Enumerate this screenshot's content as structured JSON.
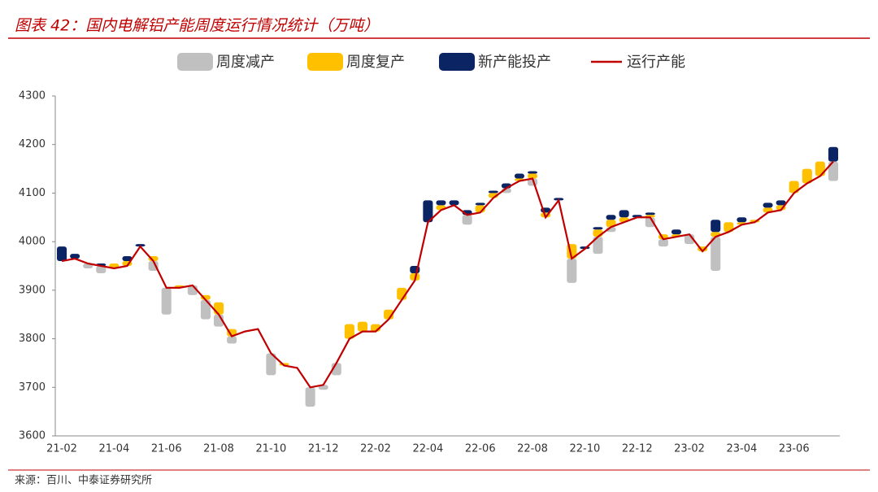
{
  "chart_data": {
    "type": "bar",
    "title": "图表 42：国内电解铝产能周度运行情况统计（万吨）",
    "source": "来源：百川、中泰证券研究所",
    "categories": [
      "21-02",
      null,
      null,
      null,
      "21-04",
      null,
      null,
      null,
      "21-06",
      null,
      null,
      null,
      "21-08",
      null,
      null,
      null,
      "21-10",
      null,
      null,
      null,
      "21-12",
      null,
      null,
      null,
      "22-02",
      null,
      null,
      null,
      "22-04",
      null,
      null,
      null,
      "22-06",
      null,
      null,
      null,
      "22-08",
      null,
      null,
      null,
      "22-10",
      null,
      null,
      null,
      "22-12",
      null,
      null,
      null,
      "23-02",
      null,
      null,
      null,
      "23-04",
      null,
      null,
      null,
      "23-06",
      null,
      null,
      null
    ],
    "ylim": [
      3600,
      4300
    ],
    "yticks": [
      3600,
      3700,
      3800,
      3900,
      4000,
      4100,
      4200,
      4300
    ],
    "series": [
      {
        "name": "周度减产",
        "color": "#c0c0c0",
        "type": "bar",
        "values": [
          0,
          0,
          10,
          15,
          0,
          0,
          0,
          20,
          55,
          0,
          20,
          40,
          25,
          15,
          0,
          0,
          45,
          0,
          0,
          40,
          10,
          25,
          0,
          0,
          0,
          0,
          0,
          0,
          0,
          0,
          0,
          20,
          0,
          0,
          10,
          0,
          15,
          0,
          0,
          50,
          0,
          35,
          10,
          0,
          0,
          20,
          15,
          0,
          20,
          0,
          70,
          0,
          0,
          0,
          0,
          0,
          0,
          0,
          0,
          40
        ]
      },
      {
        "name": "周度复产",
        "color": "#ffc000",
        "type": "bar",
        "values": [
          0,
          0,
          0,
          0,
          10,
          10,
          0,
          10,
          0,
          5,
          0,
          10,
          25,
          15,
          0,
          0,
          0,
          5,
          0,
          0,
          0,
          0,
          30,
          20,
          15,
          20,
          25,
          15,
          0,
          10,
          0,
          0,
          15,
          10,
          0,
          5,
          10,
          10,
          0,
          30,
          0,
          15,
          15,
          10,
          0,
          5,
          10,
          5,
          0,
          10,
          10,
          20,
          5,
          5,
          10,
          10,
          25,
          30,
          30,
          0
        ]
      },
      {
        "name": "新产能投产",
        "color": "#0b2463",
        "type": "bar",
        "values": [
          30,
          10,
          0,
          5,
          0,
          10,
          5,
          0,
          0,
          0,
          0,
          0,
          0,
          0,
          0,
          0,
          0,
          0,
          0,
          0,
          0,
          0,
          0,
          0,
          0,
          0,
          0,
          15,
          45,
          10,
          10,
          10,
          5,
          5,
          10,
          10,
          5,
          10,
          5,
          0,
          5,
          5,
          10,
          15,
          5,
          5,
          0,
          10,
          0,
          0,
          25,
          0,
          10,
          0,
          10,
          10,
          0,
          0,
          0,
          30
        ]
      },
      {
        "name": "运行产能",
        "color": "#c00000",
        "type": "line",
        "values": [
          3960,
          3965,
          3955,
          3950,
          3945,
          3950,
          3990,
          3960,
          3905,
          3905,
          3910,
          3880,
          3850,
          3805,
          3815,
          3820,
          3770,
          3745,
          3740,
          3700,
          3705,
          3750,
          3800,
          3815,
          3815,
          3840,
          3880,
          3920,
          4040,
          4065,
          4075,
          4055,
          4060,
          4090,
          4110,
          4125,
          4130,
          4050,
          4085,
          3965,
          3985,
          4010,
          4030,
          4040,
          4050,
          4050,
          4005,
          4010,
          4015,
          3980,
          4010,
          4020,
          4035,
          4040,
          4060,
          4065,
          4100,
          4120,
          4135,
          4165
        ]
      }
    ]
  }
}
